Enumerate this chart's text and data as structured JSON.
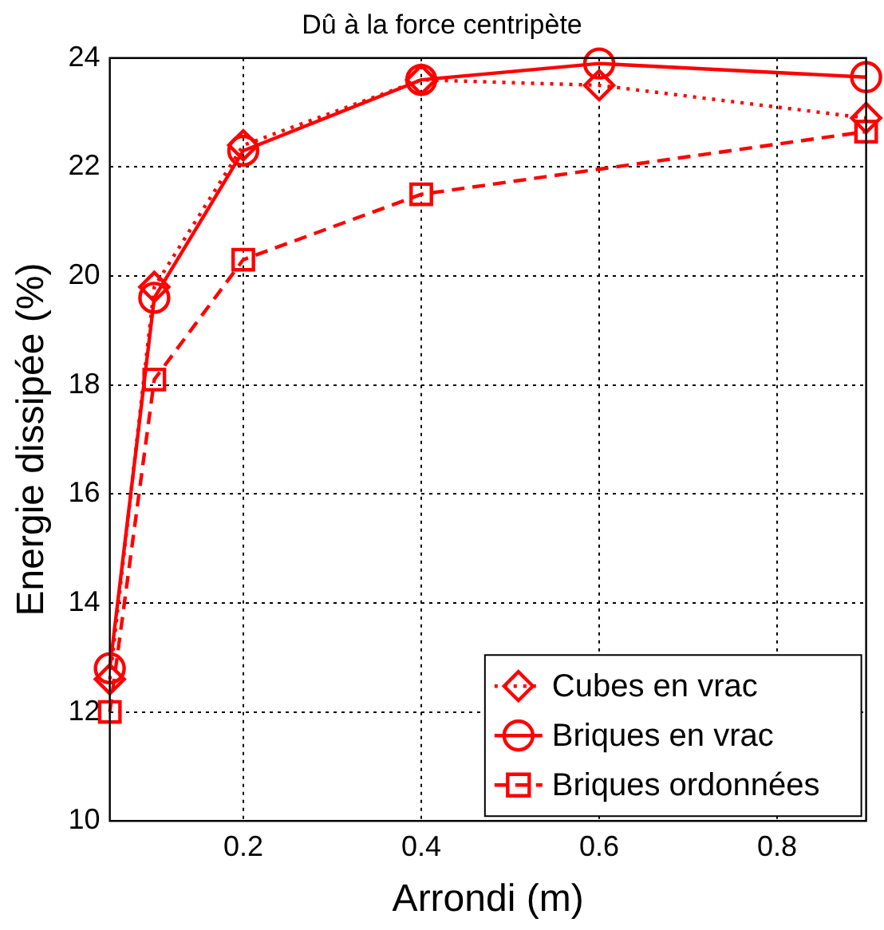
{
  "chart_data": {
    "type": "line",
    "title": "Dû à la force centripète",
    "xlabel": "Arrondi (m)",
    "ylabel": "Energie dissipée (%)",
    "series": [
      {
        "name": "Cubes en vrac",
        "color": "#ff0000",
        "marker": "diamond",
        "line_style": "dotted",
        "x": [
          0.05,
          0.1,
          0.2,
          0.4,
          0.6,
          0.9
        ],
        "values": [
          12.6,
          19.8,
          22.4,
          23.6,
          23.5,
          22.9
        ]
      },
      {
        "name": "Briques en vrac",
        "color": "#ff0000",
        "marker": "circle",
        "line_style": "solid",
        "x": [
          0.05,
          0.1,
          0.2,
          0.4,
          0.6,
          0.9
        ],
        "values": [
          12.8,
          19.6,
          22.3,
          23.6,
          23.9,
          23.65
        ]
      },
      {
        "name": "Briques ordonnées",
        "color": "#ff0000",
        "marker": "square",
        "line_style": "dashed",
        "x": [
          0.05,
          0.1,
          0.2,
          0.4,
          0.9
        ],
        "values": [
          12.0,
          18.1,
          20.3,
          21.5,
          22.65
        ]
      }
    ],
    "xlim": [
      0.05,
      0.9
    ],
    "xticks": [
      0.2,
      0.4,
      0.6,
      0.8
    ],
    "ylim": [
      10,
      24
    ],
    "yticks": [
      10,
      12,
      14,
      16,
      18,
      20,
      22,
      24
    ],
    "grid": true,
    "legend": "bottom right"
  }
}
